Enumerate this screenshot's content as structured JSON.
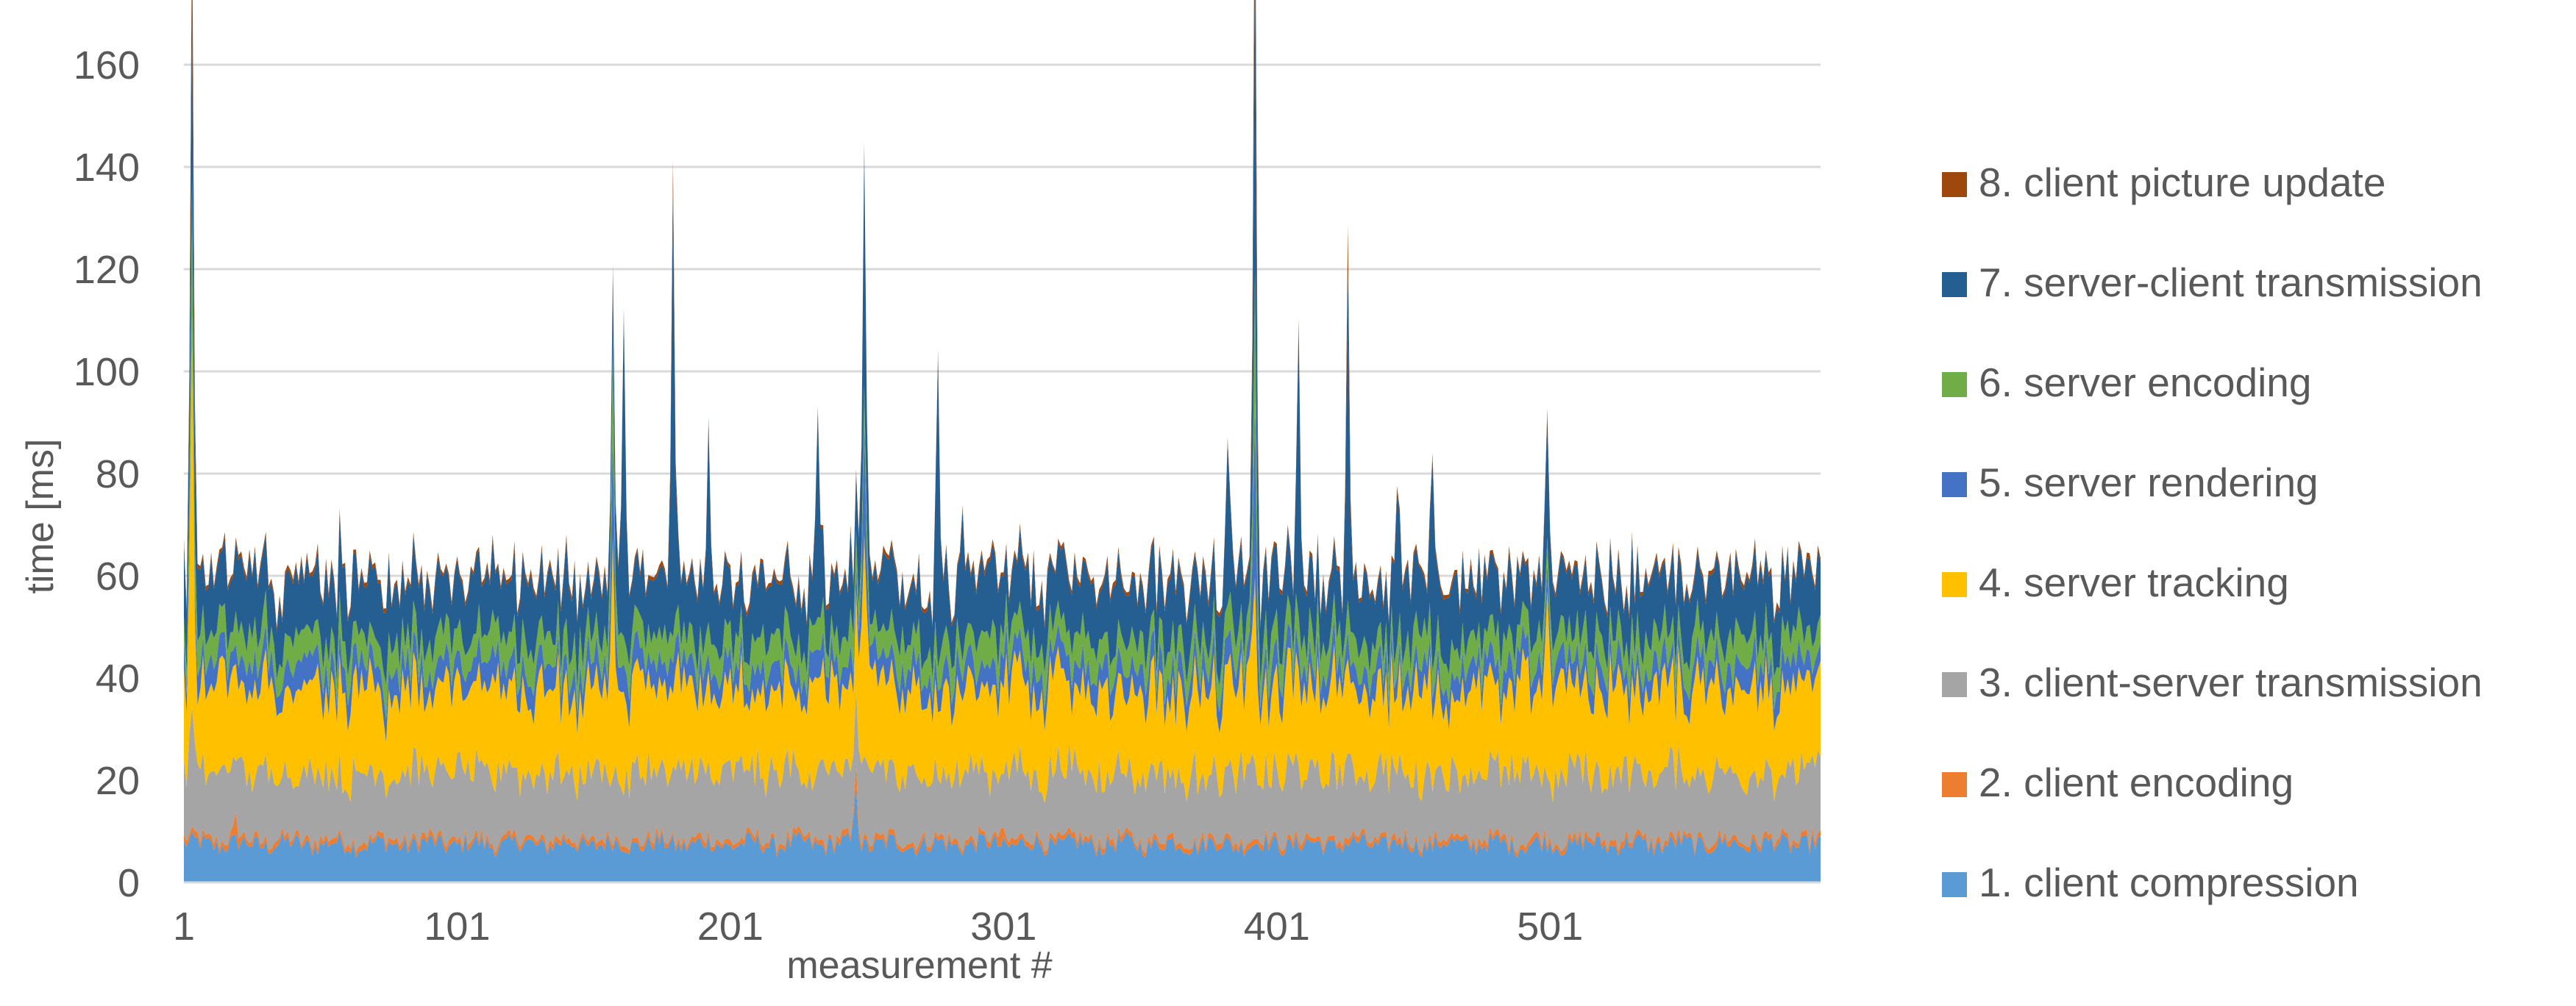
{
  "chart_data": {
    "type": "area",
    "stacked": true,
    "title": "",
    "xlabel": "measurement #",
    "ylabel": "time [ms]",
    "ylim": [
      0,
      160
    ],
    "xlim": [
      1,
      600
    ],
    "yticks": [
      0,
      20,
      40,
      60,
      80,
      100,
      120,
      140,
      160
    ],
    "xticks": [
      1,
      101,
      201,
      301,
      401,
      501
    ],
    "grid": "horizontal",
    "legend_placement": "right",
    "n_points": 600,
    "series": [
      {
        "name": "1. client compression",
        "color": "#5b9bd5",
        "mean": 7.5,
        "spikes": [
          {
            "x": 247,
            "value": 13
          }
        ]
      },
      {
        "name": "2. client encoding",
        "color": "#ed7d31",
        "mean": 1.0,
        "spikes": [
          {
            "x": 20,
            "value": 3.5
          },
          {
            "x": 247,
            "value": 3
          },
          {
            "x": 300,
            "value": 2.5
          }
        ]
      },
      {
        "name": "3. client-server transmission",
        "color": "#a5a5a5",
        "mean": 13.0,
        "spikes": [
          {
            "x": 4,
            "value": 12
          }
        ]
      },
      {
        "name": "4. server tracking",
        "color": "#ffc000",
        "mean": 16.5,
        "spikes": [
          {
            "x": 4,
            "value": 55
          },
          {
            "x": 158,
            "value": 30
          },
          {
            "x": 250,
            "value": 30
          },
          {
            "x": 393,
            "value": 20
          },
          {
            "x": 500,
            "value": 20
          }
        ]
      },
      {
        "name": "5. server rendering",
        "color": "#4472c4",
        "mean": 4.5,
        "spikes": [
          {
            "x": 158,
            "value": 18
          },
          {
            "x": 250,
            "value": 18
          },
          {
            "x": 393,
            "value": 30
          }
        ]
      },
      {
        "name": "6. server encoding",
        "color": "#70ad47",
        "mean": 5.5,
        "spikes": [
          {
            "x": 4,
            "value": 20
          },
          {
            "x": 158,
            "value": 12
          },
          {
            "x": 393,
            "value": 20
          }
        ]
      },
      {
        "name": "7. server-client transmission",
        "color": "#255e91",
        "mean": 11.5,
        "spikes": [
          {
            "x": 4,
            "value": 30
          },
          {
            "x": 162,
            "value": 50
          },
          {
            "x": 180,
            "value": 75
          },
          {
            "x": 193,
            "value": 25
          },
          {
            "x": 233,
            "value": 30
          },
          {
            "x": 250,
            "value": 35
          },
          {
            "x": 277,
            "value": 50
          },
          {
            "x": 286,
            "value": 20
          },
          {
            "x": 383,
            "value": 20
          },
          {
            "x": 393,
            "value": 60
          },
          {
            "x": 409,
            "value": 45
          },
          {
            "x": 427,
            "value": 55
          },
          {
            "x": 445,
            "value": 20
          },
          {
            "x": 458,
            "value": 30
          },
          {
            "x": 500,
            "value": 15
          }
        ]
      },
      {
        "name": "8. client picture update",
        "color": "#9e480e",
        "mean": 0.8,
        "spikes": [
          {
            "x": 4,
            "value": 15
          },
          {
            "x": 180,
            "value": 5
          },
          {
            "x": 393,
            "value": 20
          },
          {
            "x": 427,
            "value": 8
          }
        ]
      }
    ]
  }
}
